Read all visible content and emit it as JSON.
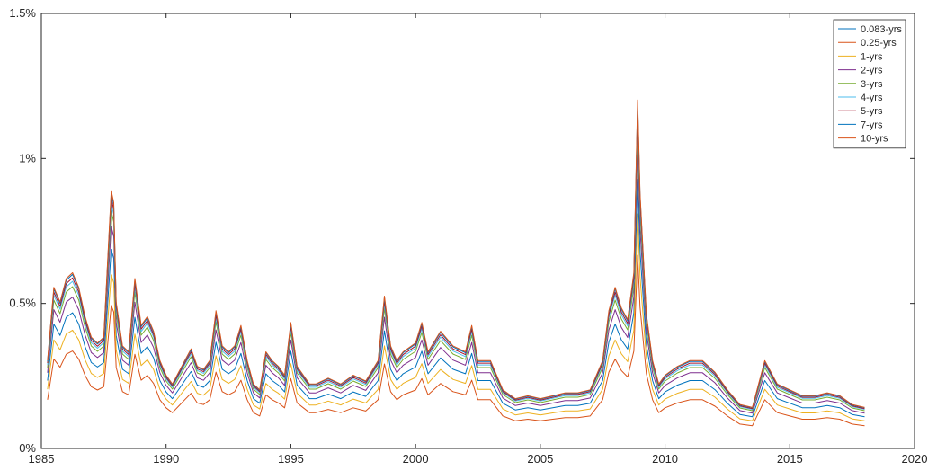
{
  "chart_data": {
    "type": "line",
    "title": "",
    "xlabel": "",
    "ylabel": "",
    "xlim": [
      1985,
      2020
    ],
    "ylim": [
      0,
      1.5
    ],
    "x_ticks": [
      1985,
      1990,
      1995,
      2000,
      2005,
      2010,
      2015,
      2020
    ],
    "x_tick_labels": [
      "1985",
      "1990",
      "1995",
      "2000",
      "2005",
      "2010",
      "2015",
      "2020"
    ],
    "y_ticks": [
      0,
      0.5,
      1,
      1.5
    ],
    "y_tick_labels": [
      "0%",
      "0.5%",
      "1%",
      "1.5%"
    ],
    "grid": false,
    "legend_position": "top-right",
    "colors": [
      "#0072BD",
      "#D95319",
      "#EDB120",
      "#7E2F8E",
      "#77AC30",
      "#4DBEEE",
      "#A2142F",
      "#0072BD",
      "#D95319"
    ],
    "base_profile": {
      "x": [
        1985.25,
        1985.5,
        1985.75,
        1986.0,
        1986.25,
        1986.5,
        1986.75,
        1987.0,
        1987.25,
        1987.5,
        1987.8,
        1987.9,
        1988.0,
        1988.25,
        1988.5,
        1988.75,
        1989.0,
        1989.25,
        1989.5,
        1989.75,
        1990.0,
        1990.25,
        1990.5,
        1990.75,
        1991.0,
        1991.25,
        1991.5,
        1991.75,
        1992.0,
        1992.25,
        1992.5,
        1992.75,
        1993.0,
        1993.25,
        1993.5,
        1993.75,
        1994.0,
        1994.25,
        1994.5,
        1994.75,
        1995.0,
        1995.25,
        1995.5,
        1995.75,
        1996.0,
        1996.5,
        1997.0,
        1997.5,
        1998.0,
        1998.5,
        1998.75,
        1999.0,
        1999.25,
        1999.5,
        2000.0,
        2000.25,
        2000.5,
        2001.0,
        2001.5,
        2002.0,
        2002.25,
        2002.5,
        2003.0,
        2003.5,
        2004.0,
        2004.5,
        2005.0,
        2005.5,
        2006.0,
        2006.5,
        2007.0,
        2007.5,
        2007.75,
        2008.0,
        2008.25,
        2008.5,
        2008.75,
        2008.9,
        2009.0,
        2009.25,
        2009.5,
        2009.75,
        2010.0,
        2010.5,
        2011.0,
        2011.5,
        2012.0,
        2012.5,
        2013.0,
        2013.5,
        2014.0,
        2014.5,
        2015.0,
        2015.5,
        2016.0,
        2016.5,
        2017.0,
        2017.5,
        2018.0
      ],
      "y": [
        0.3,
        0.55,
        0.5,
        0.58,
        0.6,
        0.55,
        0.45,
        0.38,
        0.36,
        0.38,
        0.88,
        0.84,
        0.5,
        0.35,
        0.33,
        0.58,
        0.42,
        0.45,
        0.4,
        0.3,
        0.25,
        0.22,
        0.26,
        0.3,
        0.34,
        0.28,
        0.27,
        0.3,
        0.47,
        0.35,
        0.33,
        0.35,
        0.42,
        0.3,
        0.22,
        0.2,
        0.33,
        0.3,
        0.28,
        0.25,
        0.43,
        0.28,
        0.25,
        0.22,
        0.22,
        0.24,
        0.22,
        0.25,
        0.23,
        0.3,
        0.52,
        0.35,
        0.3,
        0.33,
        0.36,
        0.43,
        0.33,
        0.4,
        0.35,
        0.33,
        0.42,
        0.3,
        0.3,
        0.2,
        0.17,
        0.18,
        0.17,
        0.18,
        0.19,
        0.19,
        0.2,
        0.3,
        0.47,
        0.55,
        0.48,
        0.44,
        0.6,
        1.19,
        0.87,
        0.46,
        0.3,
        0.22,
        0.25,
        0.28,
        0.3,
        0.3,
        0.26,
        0.2,
        0.15,
        0.14,
        0.3,
        0.22,
        0.2,
        0.18,
        0.18,
        0.19,
        0.18,
        0.15,
        0.14
      ]
    },
    "series": [
      {
        "name": "0.083-yrs",
        "scale": 0.78
      },
      {
        "name": "0.25-yrs",
        "scale": 0.56
      },
      {
        "name": "1-yrs",
        "scale": 0.68
      },
      {
        "name": "2-yrs",
        "scale": 0.87
      },
      {
        "name": "3-yrs",
        "scale": 0.93
      },
      {
        "name": "4-yrs",
        "scale": 0.96
      },
      {
        "name": "5-yrs",
        "scale": 0.98
      },
      {
        "name": "7-yrs",
        "scale": 1.0
      },
      {
        "name": "10-yrs",
        "scale": 1.01
      }
    ]
  }
}
